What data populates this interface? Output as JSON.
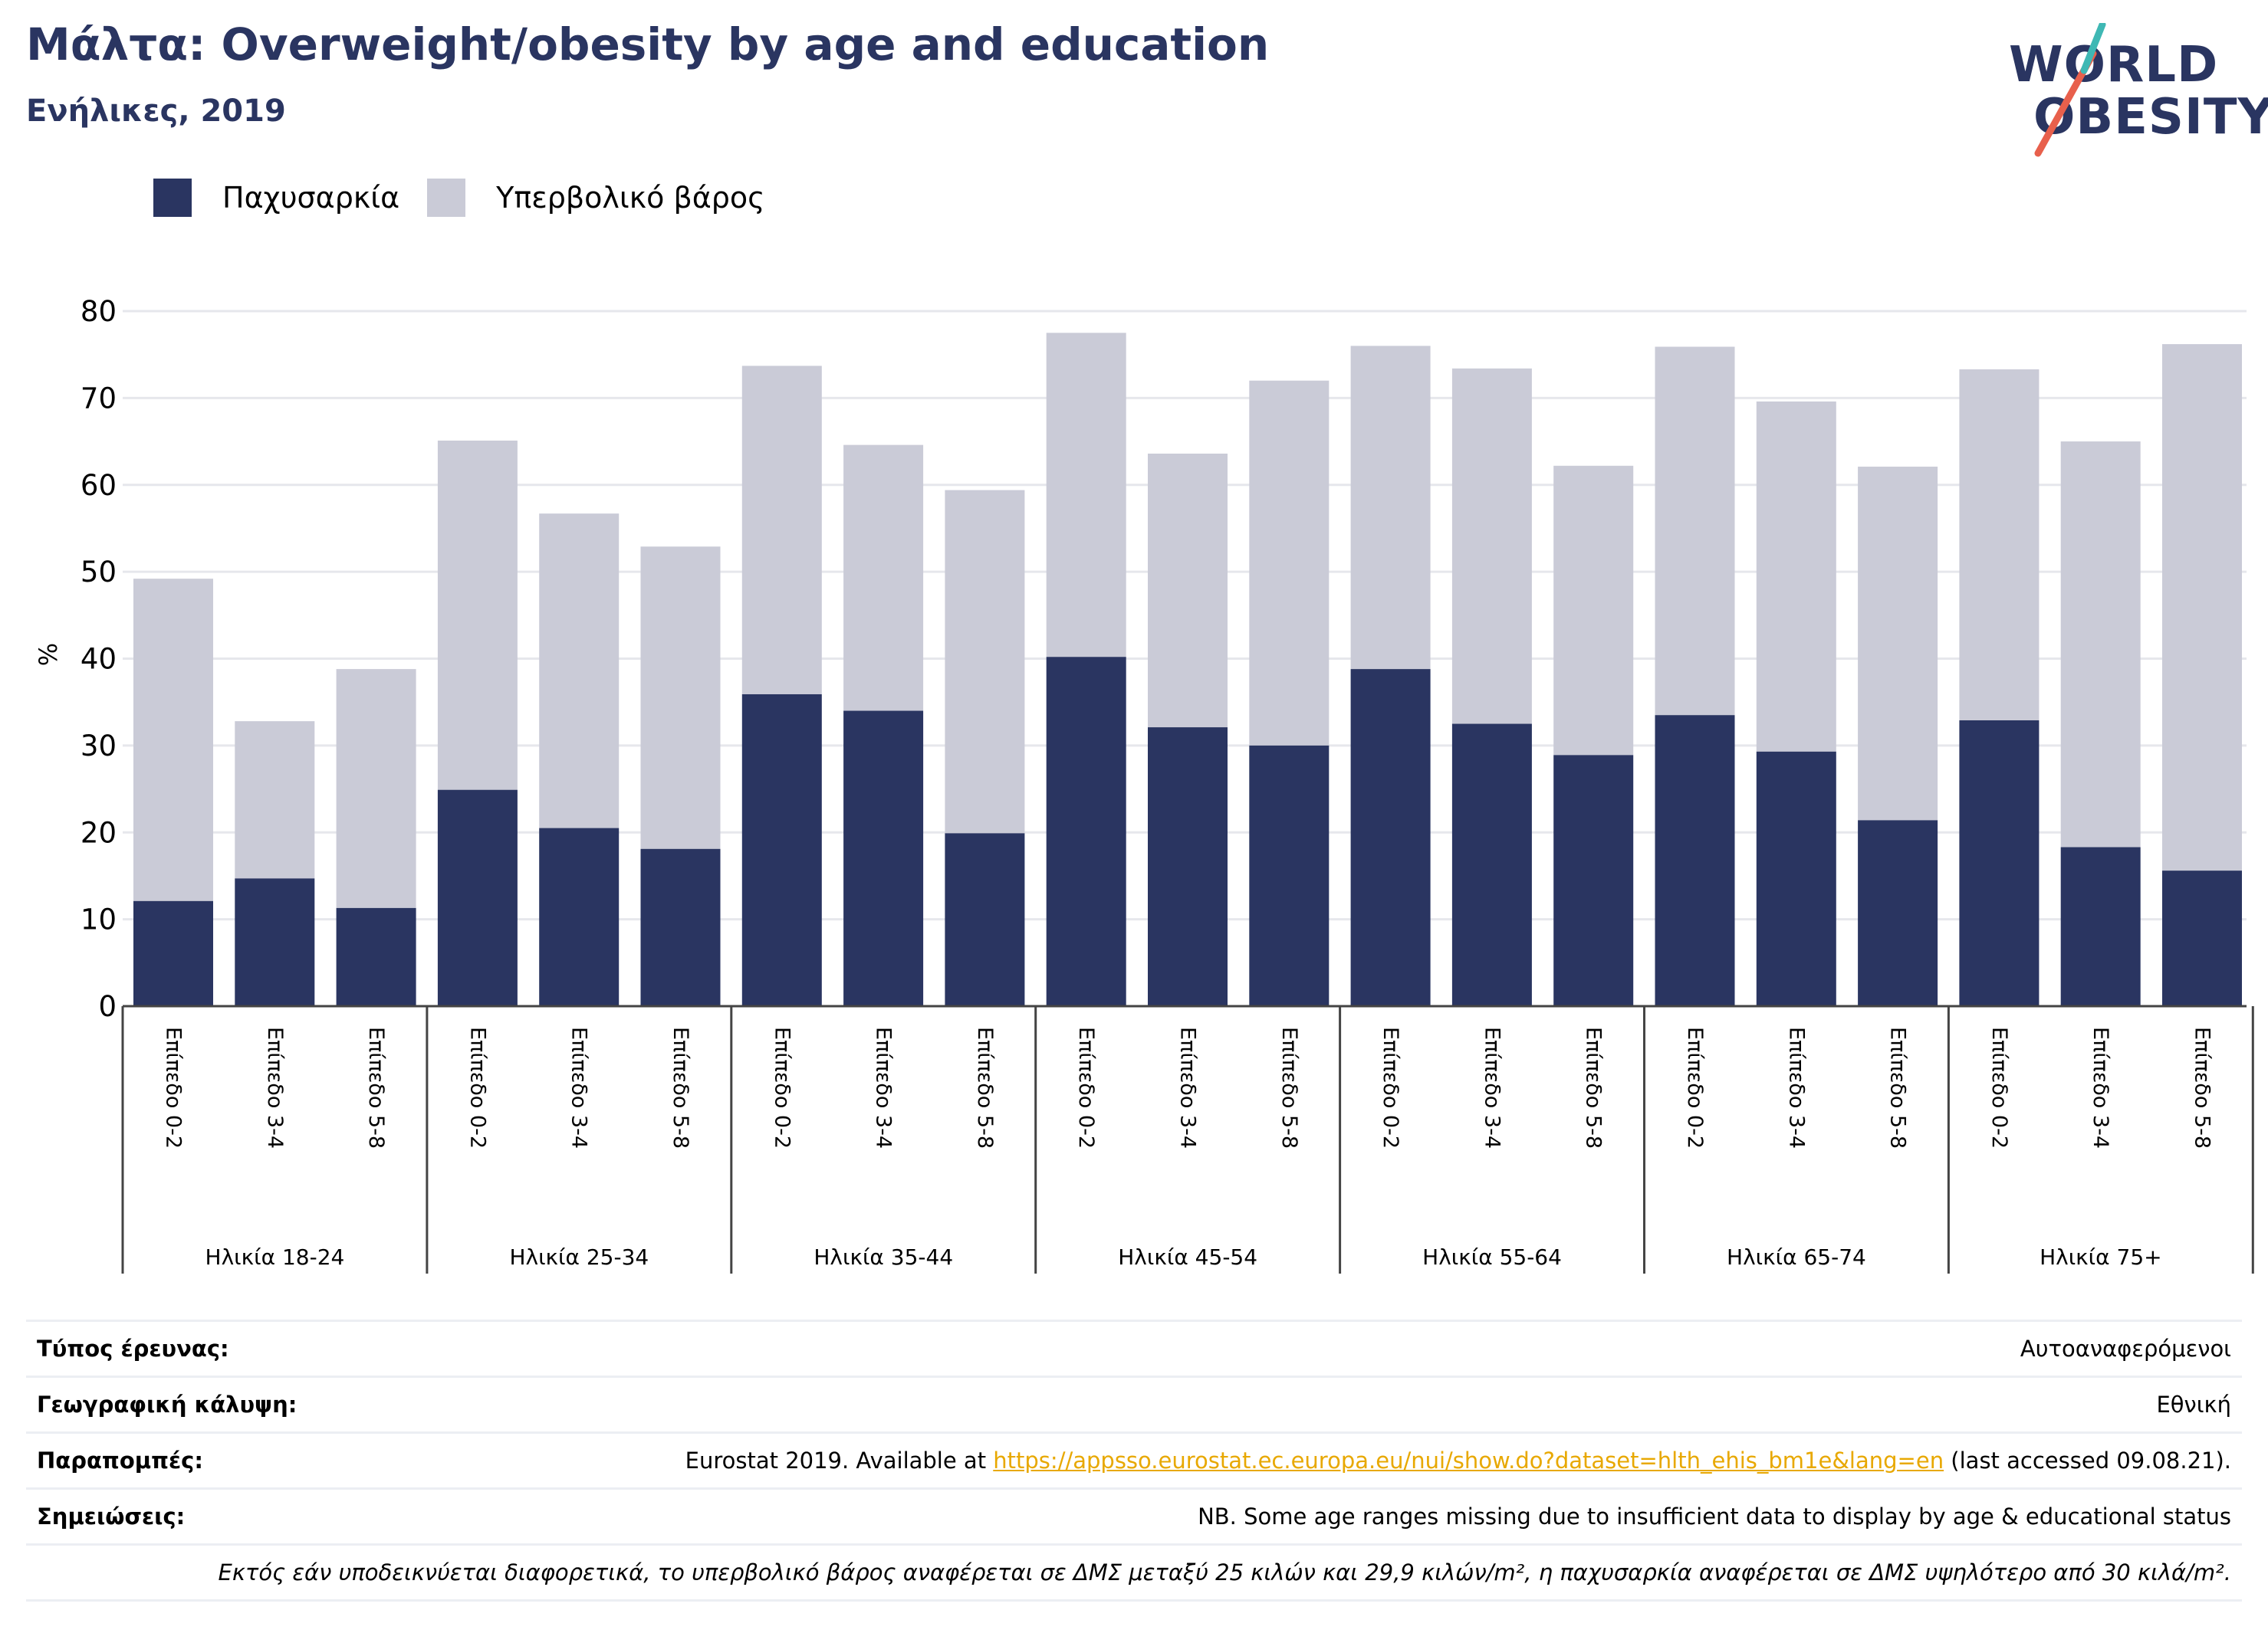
{
  "header": {
    "title": "Μάλτα: Overweight/obesity by age and education",
    "subtitle": "Ενήλικες, 2019"
  },
  "logo": {
    "line1": "WORLD",
    "line2": "OBESITY",
    "colors": {
      "text": "#2a3561",
      "slash_red": "#e8604c",
      "slash_teal": "#3fb8b4"
    }
  },
  "legend": [
    {
      "label": "Παχυσαρκία",
      "color": "#2a3561"
    },
    {
      "label": "Υπερβολικό βάρος",
      "color": "#cacbd7"
    }
  ],
  "chart_data": {
    "type": "bar",
    "stacked": true,
    "ylabel": "%",
    "ylim": [
      0,
      80
    ],
    "yticks": [
      0,
      10,
      20,
      30,
      40,
      50,
      60,
      70,
      80
    ],
    "grid": true,
    "legend_position": "top-left",
    "education_levels": [
      "Επίπεδο 0-2",
      "Επίπεδο 3-4",
      "Επίπεδο 5-8"
    ],
    "age_groups": [
      "Ηλικία 18-24",
      "Ηλικία 25-34",
      "Ηλικία 35-44",
      "Ηλικία 45-54",
      "Ηλικία 55-64",
      "Ηλικία 65-74",
      "Ηλικία 75+"
    ],
    "series": [
      {
        "name": "Παχυσαρκία",
        "color": "#2a3561",
        "values": [
          12.1,
          14.7,
          11.3,
          24.9,
          20.5,
          18.1,
          35.9,
          34.0,
          19.9,
          40.2,
          32.1,
          30.0,
          38.8,
          32.5,
          28.9,
          33.5,
          29.3,
          21.4,
          32.9,
          18.3,
          15.6
        ]
      },
      {
        "name": "Υπερβολικό βάρος",
        "color": "#cacbd7",
        "values": [
          37.1,
          18.1,
          27.5,
          40.2,
          36.2,
          34.8,
          37.8,
          30.6,
          39.5,
          37.3,
          31.5,
          42.0,
          37.2,
          40.9,
          33.3,
          42.4,
          40.3,
          40.7,
          40.4,
          46.7,
          60.6
        ]
      }
    ]
  },
  "metadata": [
    {
      "label": "Τύπος έρευνας:",
      "value": "Αυτοαναφερόμενοι"
    },
    {
      "label": "Γεωγραφική κάλυψη:",
      "value": "Εθνική"
    },
    {
      "label": "Παραπομπές:",
      "value_prefix": "Eurostat 2019. Available at ",
      "link": "https://appsso.eurostat.ec.europa.eu/nui/show.do?dataset=hlth_ehis_bm1e&lang=en",
      "value_suffix": " (last accessed 09.08.21)."
    },
    {
      "label": "Σημειώσεις:",
      "value": "NB. Some age ranges missing due to insufficient data to display by age & educational status"
    }
  ],
  "footnote": "Εκτός εάν υποδεικνύεται διαφορετικά, το υπερβολικό βάρος αναφέρεται σε ΔΜΣ μεταξύ 25 κιλών και 29,9 κιλών/m², η παχυσαρκία αναφέρεται σε ΔΜΣ υψηλότερο από 30 κιλά/m²."
}
